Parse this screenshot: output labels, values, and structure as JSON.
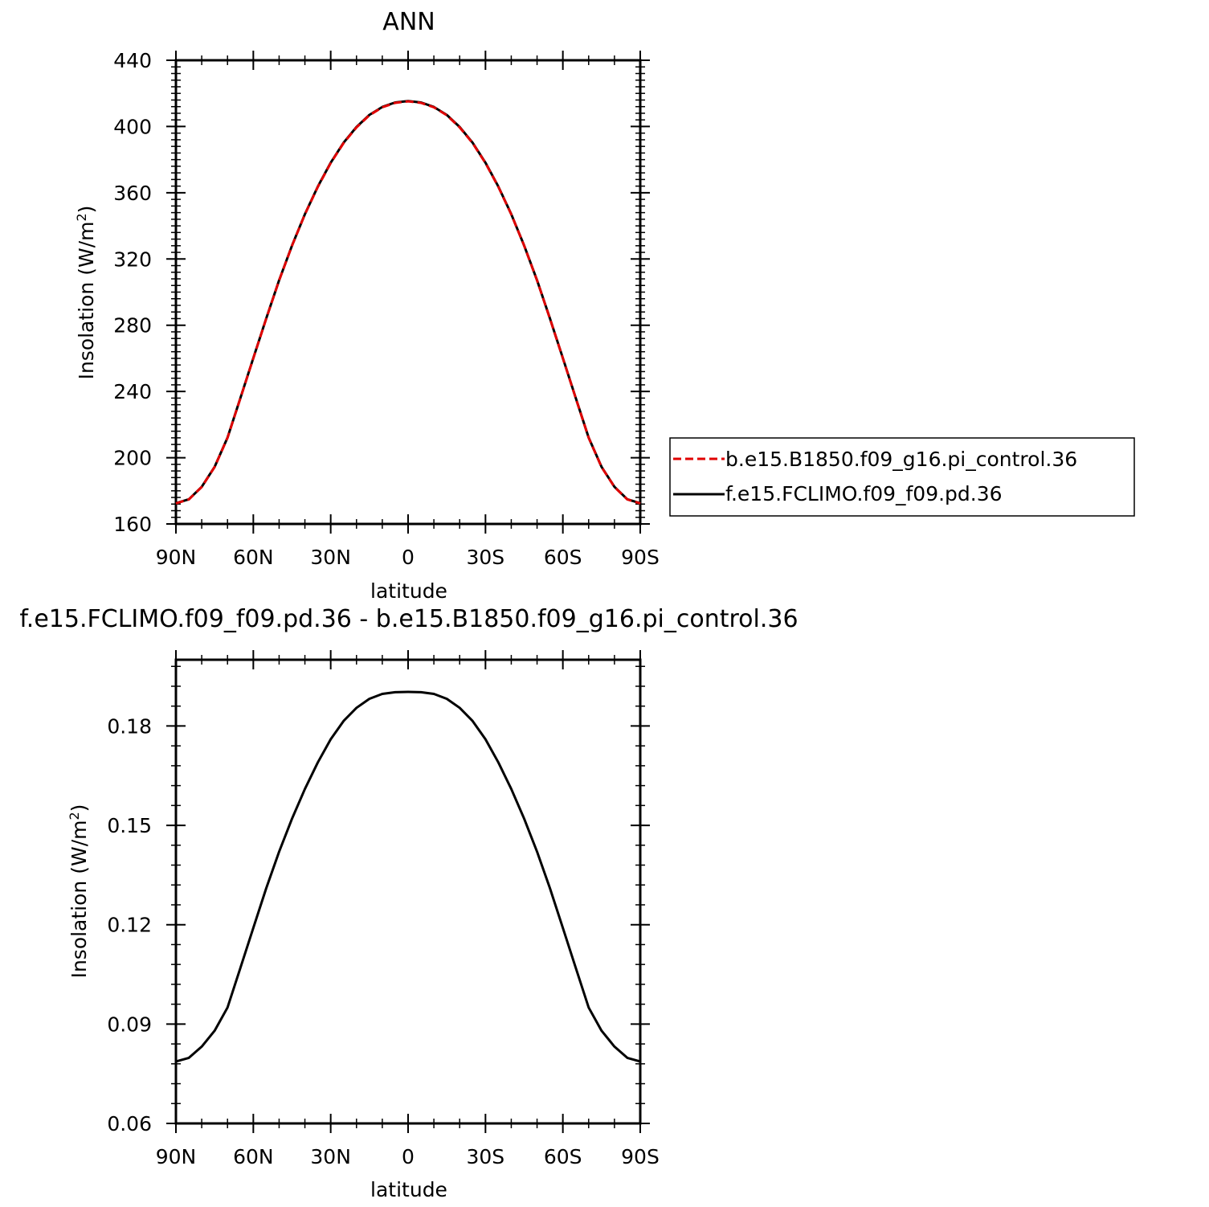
{
  "chart_data": [
    {
      "type": "line",
      "title": "ANN",
      "xlabel": "latitude",
      "ylabel": "Insolation (W/m",
      "ylabel_sup": "2",
      "ylabel_close": ")",
      "xlim": [
        -90,
        90
      ],
      "ylim": [
        160,
        440
      ],
      "xticks": [
        -90,
        -60,
        -30,
        0,
        30,
        60,
        90
      ],
      "xtick_labels": [
        "90N",
        "60N",
        "30N",
        "0",
        "30S",
        "60S",
        "90S"
      ],
      "yticks": [
        160,
        200,
        240,
        280,
        320,
        360,
        400,
        440
      ],
      "ytick_labels": [
        "160",
        "200",
        "240",
        "280",
        "320",
        "360",
        "400",
        "440"
      ],
      "x": [
        -90,
        -85,
        -80,
        -75,
        -70,
        -65,
        -60,
        -55,
        -50,
        -45,
        -40,
        -35,
        -30,
        -25,
        -20,
        -15,
        -10,
        -5,
        0,
        5,
        10,
        15,
        20,
        25,
        30,
        35,
        40,
        45,
        50,
        55,
        60,
        65,
        70,
        75,
        80,
        85,
        90
      ],
      "series": [
        {
          "name": "b.e15.B1850.f09_g16.pi_control.36",
          "color": "#e00000",
          "dash": "dashed",
          "values": [
            172.4,
            174.8,
            182.3,
            194.4,
            212.0,
            236.0,
            260.0,
            284.0,
            307.0,
            328.0,
            347.0,
            363.5,
            378.0,
            390.0,
            399.5,
            406.8,
            411.6,
            414.3,
            415.2,
            414.3,
            411.6,
            406.8,
            399.5,
            390.0,
            378.0,
            363.5,
            347.0,
            328.0,
            307.0,
            284.0,
            260.0,
            236.0,
            212.0,
            194.4,
            182.3,
            174.8,
            172.4
          ]
        },
        {
          "name": "f.e15.FCLIMO.f09_f09.pd.36",
          "color": "#000000",
          "dash": "solid",
          "values": [
            172.5,
            174.9,
            182.4,
            194.5,
            212.1,
            236.1,
            260.1,
            284.1,
            307.1,
            328.1,
            347.1,
            363.7,
            378.2,
            390.2,
            399.7,
            407.0,
            411.8,
            414.5,
            415.4,
            414.5,
            411.8,
            407.0,
            399.7,
            390.2,
            378.2,
            363.7,
            347.1,
            328.1,
            307.1,
            284.1,
            260.1,
            236.1,
            212.1,
            194.5,
            182.4,
            174.9,
            172.5
          ]
        }
      ],
      "legend": "right"
    },
    {
      "type": "line",
      "title": "f.e15.FCLIMO.f09_f09.pd.36 - b.e15.B1850.f09_g16.pi_control.36",
      "xlabel": "latitude",
      "ylabel": "Insolation (W/m",
      "ylabel_sup": "2",
      "ylabel_close": ")",
      "xlim": [
        -90,
        90
      ],
      "ylim": [
        0.06,
        0.2
      ],
      "xticks": [
        -90,
        -60,
        -30,
        0,
        30,
        60,
        90
      ],
      "xtick_labels": [
        "90N",
        "60N",
        "30N",
        "0",
        "30S",
        "60S",
        "90S"
      ],
      "yticks": [
        0.06,
        0.09,
        0.12,
        0.15,
        0.18
      ],
      "ytick_labels": [
        "0.06",
        "0.09",
        "0.12",
        "0.15",
        "0.18"
      ],
      "x": [
        -90,
        -85,
        -80,
        -75,
        -70,
        -65,
        -60,
        -55,
        -50,
        -45,
        -40,
        -35,
        -30,
        -25,
        -20,
        -15,
        -10,
        -5,
        0,
        5,
        10,
        15,
        20,
        25,
        30,
        35,
        40,
        45,
        50,
        55,
        60,
        65,
        70,
        75,
        80,
        85,
        90
      ],
      "series": [
        {
          "color": "#000000",
          "dash": "solid",
          "values": [
            0.0787,
            0.0798,
            0.0832,
            0.088,
            0.095,
            0.107,
            0.119,
            0.131,
            0.142,
            0.152,
            0.161,
            0.169,
            0.176,
            0.1815,
            0.1855,
            0.1882,
            0.1897,
            0.1902,
            0.1903,
            0.1902,
            0.1897,
            0.1882,
            0.1855,
            0.1815,
            0.176,
            0.169,
            0.161,
            0.152,
            0.142,
            0.131,
            0.119,
            0.107,
            0.095,
            0.088,
            0.0832,
            0.0798,
            0.0787
          ]
        }
      ]
    }
  ]
}
